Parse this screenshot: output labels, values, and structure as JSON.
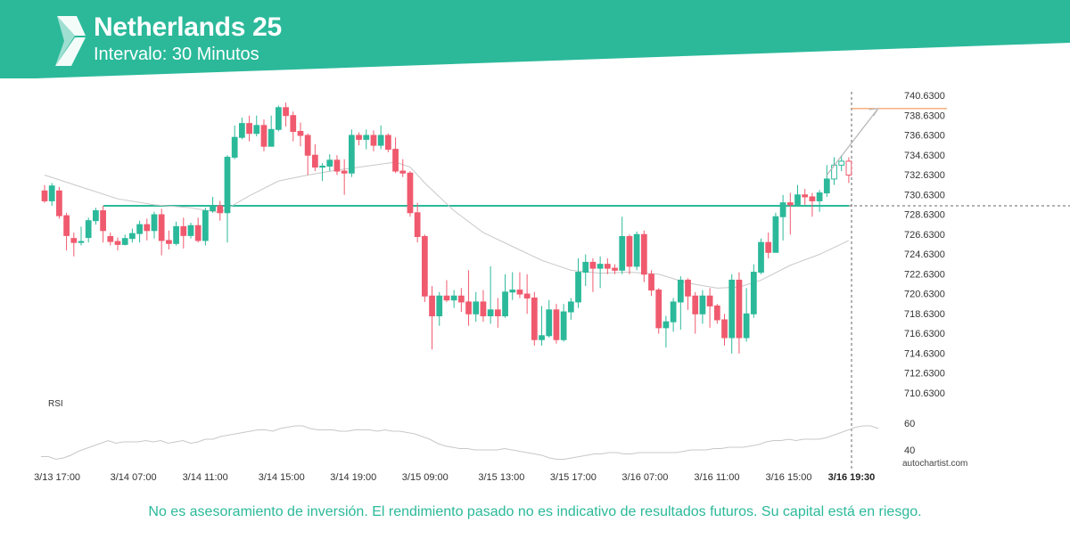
{
  "header": {
    "title": "Netherlands 25",
    "subtitle": "Intervalo: 30 Minutos",
    "brand_color": "#2bb99a"
  },
  "disclaimer": "No es asesoramiento de inversión. El rendimiento pasado no es indicativo de resultados futuros. Su capital está en riesgo.",
  "watermark": "autochartist.com",
  "chart_data": [
    {
      "type": "candlestick",
      "title": "Netherlands 25",
      "ylim": [
        710.0,
        741.0
      ],
      "y_ticks": [
        "740.6300",
        "738.6300",
        "736.6300",
        "734.6300",
        "732.6300",
        "730.6300",
        "728.6300",
        "726.6300",
        "724.6300",
        "722.6300",
        "720.6300",
        "718.6300",
        "716.6300",
        "714.6300",
        "712.6300",
        "710.6300"
      ],
      "x_ticks": [
        "3/13 17:00",
        "3/14 07:00",
        "3/14 11:00",
        "3/14 15:00",
        "3/14 19:00",
        "3/15 09:00",
        "3/15 13:00",
        "3/15 17:00",
        "3/16 07:00",
        "3/16 11:00",
        "3/16 15:00",
        "3/16 19:30"
      ],
      "highlight_x_tick": "3/16 19:30",
      "support_level": 729.5,
      "target_level": 739.3,
      "colors": {
        "up": "#2bb99a",
        "down": "#f05a6e",
        "ma": "#c8c8c8",
        "support": "#2bb99a",
        "target": "#f0883c",
        "arrow": "#b5b5b5"
      },
      "candles": [
        [
          731.0,
          730.0,
          731.6,
          729.8
        ],
        [
          730.0,
          731.5,
          731.8,
          729.5
        ],
        [
          731.0,
          728.5,
          731.4,
          728.2
        ],
        [
          728.5,
          726.5,
          728.8,
          725.0
        ],
        [
          726.2,
          725.8,
          726.8,
          724.4
        ],
        [
          725.8,
          725.9,
          727.4,
          725.5
        ],
        [
          726.3,
          728.0,
          728.3,
          725.8
        ],
        [
          728.0,
          729.0,
          729.3,
          727.6
        ],
        [
          729.0,
          727.0,
          729.5,
          725.8
        ],
        [
          726.4,
          725.9,
          726.8,
          725.5
        ],
        [
          725.9,
          725.6,
          726.3,
          725.0
        ],
        [
          725.6,
          726.2,
          726.6,
          725.5
        ],
        [
          726.2,
          726.7,
          727.2,
          725.8
        ],
        [
          726.7,
          727.6,
          728.0,
          725.8
        ],
        [
          727.6,
          727.0,
          728.2,
          726.0
        ],
        [
          727.0,
          728.6,
          728.9,
          726.2
        ],
        [
          728.6,
          726.0,
          729.2,
          724.5
        ],
        [
          726.0,
          725.7,
          727.0,
          725.1
        ],
        [
          725.7,
          727.4,
          727.9,
          725.5
        ],
        [
          727.4,
          726.5,
          728.3,
          725.2
        ],
        [
          726.5,
          727.5,
          727.8,
          726.2
        ],
        [
          727.5,
          726.0,
          728.3,
          725.8
        ],
        [
          726.0,
          729.0,
          729.3,
          725.5
        ],
        [
          729.0,
          729.5,
          730.4,
          728.8
        ],
        [
          729.5,
          728.8,
          730.0,
          728.0
        ],
        [
          728.8,
          734.4,
          734.6,
          725.8
        ],
        [
          734.4,
          736.4,
          737.6,
          734.2
        ],
        [
          736.4,
          737.8,
          738.4,
          736.2
        ],
        [
          737.8,
          736.8,
          738.6,
          736.0
        ],
        [
          736.8,
          737.6,
          738.6,
          736.5
        ],
        [
          737.6,
          735.5,
          738.2,
          735.0
        ],
        [
          735.5,
          737.2,
          738.6,
          736.8
        ],
        [
          737.2,
          739.4,
          739.6,
          737.0
        ],
        [
          739.4,
          738.6,
          739.9,
          737.5
        ],
        [
          738.6,
          737.0,
          739.0,
          736.0
        ],
        [
          737.0,
          736.6,
          737.9,
          735.5
        ],
        [
          736.6,
          734.6,
          736.8,
          732.6
        ],
        [
          734.6,
          733.4,
          735.7,
          733.0
        ],
        [
          733.4,
          733.5,
          733.8,
          732.0
        ],
        [
          733.5,
          734.1,
          734.7,
          733.0
        ],
        [
          734.1,
          733.0,
          734.6,
          732.6
        ],
        [
          733.0,
          732.8,
          734.2,
          730.6
        ],
        [
          732.8,
          736.6,
          737.2,
          732.4
        ],
        [
          736.6,
          736.2,
          736.9,
          735.6
        ],
        [
          736.2,
          736.6,
          737.2,
          735.2
        ],
        [
          736.6,
          735.6,
          737.1,
          735.0
        ],
        [
          735.6,
          736.6,
          737.6,
          735.2
        ],
        [
          736.6,
          735.2,
          736.8,
          734.9
        ],
        [
          735.2,
          733.0,
          736.4,
          732.8
        ],
        [
          733.0,
          732.8,
          734.2,
          732.4
        ],
        [
          732.8,
          728.8,
          733.0,
          728.4
        ],
        [
          728.8,
          726.4,
          729.8,
          725.8
        ],
        [
          726.4,
          720.4,
          726.6,
          719.8
        ],
        [
          720.4,
          718.4,
          721.4,
          715.0
        ],
        [
          718.4,
          720.4,
          720.8,
          717.4
        ],
        [
          720.4,
          720.0,
          722.0,
          719.8
        ],
        [
          720.0,
          720.4,
          721.0,
          719.2
        ],
        [
          720.4,
          719.8,
          721.2,
          718.8
        ],
        [
          719.8,
          718.6,
          723.0,
          717.4
        ],
        [
          718.6,
          719.8,
          720.8,
          717.8
        ],
        [
          719.8,
          718.4,
          721.0,
          717.8
        ],
        [
          718.4,
          719.0,
          723.4,
          717.6
        ],
        [
          719.0,
          718.4,
          720.2,
          717.2
        ],
        [
          718.4,
          720.8,
          722.6,
          718.2
        ],
        [
          720.8,
          721.0,
          722.8,
          720.0
        ],
        [
          721.0,
          720.6,
          722.8,
          720.2
        ],
        [
          720.6,
          720.2,
          722.6,
          718.6
        ],
        [
          720.2,
          716.0,
          720.8,
          715.4
        ],
        [
          716.0,
          716.4,
          719.4,
          715.4
        ],
        [
          716.4,
          719.0,
          720.0,
          716.2
        ],
        [
          719.0,
          716.0,
          719.6,
          715.6
        ],
        [
          716.0,
          718.8,
          719.6,
          715.8
        ],
        [
          718.8,
          719.8,
          720.2,
          718.0
        ],
        [
          719.8,
          722.8,
          724.2,
          719.2
        ],
        [
          722.8,
          723.8,
          724.6,
          721.4
        ],
        [
          723.8,
          723.2,
          724.2,
          720.8
        ],
        [
          723.2,
          723.6,
          724.4,
          721.2
        ],
        [
          723.6,
          723.2,
          724.2,
          722.6
        ],
        [
          723.2,
          723.0,
          723.6,
          722.6
        ],
        [
          723.0,
          726.4,
          728.4,
          722.6
        ],
        [
          726.4,
          723.4,
          726.6,
          722.6
        ],
        [
          723.4,
          726.6,
          726.9,
          723.0
        ],
        [
          726.6,
          722.6,
          727.0,
          721.8
        ],
        [
          722.6,
          721.0,
          723.0,
          720.4
        ],
        [
          721.0,
          717.2,
          721.2,
          716.6
        ],
        [
          717.2,
          717.8,
          718.4,
          715.2
        ],
        [
          717.8,
          719.8,
          720.2,
          716.8
        ],
        [
          719.8,
          722.0,
          722.4,
          717.0
        ],
        [
          722.0,
          720.4,
          722.2,
          719.0
        ],
        [
          720.4,
          718.6,
          720.8,
          716.6
        ],
        [
          718.6,
          720.4,
          721.0,
          717.6
        ],
        [
          720.4,
          719.4,
          721.2,
          717.2
        ],
        [
          719.4,
          718.0,
          719.6,
          717.6
        ],
        [
          718.0,
          716.2,
          718.6,
          715.4
        ],
        [
          716.2,
          722.0,
          722.6,
          714.6
        ],
        [
          722.0,
          716.2,
          722.8,
          714.6
        ],
        [
          716.2,
          718.6,
          721.2,
          715.8
        ],
        [
          718.6,
          722.8,
          723.6,
          718.2
        ],
        [
          722.8,
          725.8,
          726.2,
          722.6
        ],
        [
          725.8,
          724.8,
          726.8,
          724.2
        ],
        [
          724.8,
          728.4,
          728.8,
          724.8
        ],
        [
          728.4,
          729.8,
          730.6,
          726.0
        ],
        [
          729.8,
          729.6,
          730.8,
          726.6
        ],
        [
          729.6,
          730.6,
          731.6,
          729.4
        ],
        [
          730.6,
          730.4,
          731.2,
          729.6
        ],
        [
          730.4,
          730.0,
          730.8,
          728.4
        ],
        [
          730.0,
          730.8,
          731.1,
          728.9
        ],
        [
          730.8,
          732.2,
          733.6,
          730.4
        ],
        [
          732.2,
          733.6,
          734.4,
          731.6
        ],
        [
          733.6,
          734.0,
          734.6,
          733.0
        ],
        [
          734.0,
          732.6,
          734.4,
          731.8
        ]
      ],
      "hollow_last": 3,
      "ma": [
        [
          0,
          732.6
        ],
        [
          5,
          731.4
        ],
        [
          10,
          730.2
        ],
        [
          15,
          729.6
        ],
        [
          20,
          729.3
        ],
        [
          24,
          728.8
        ],
        [
          28,
          730.5
        ],
        [
          32,
          732.0
        ],
        [
          36,
          732.6
        ],
        [
          40,
          733.1
        ],
        [
          44,
          733.5
        ],
        [
          48,
          733.9
        ],
        [
          50,
          733.4
        ],
        [
          52,
          731.8
        ],
        [
          56,
          729.0
        ],
        [
          60,
          726.8
        ],
        [
          64,
          725.4
        ],
        [
          68,
          724.0
        ],
        [
          72,
          723.0
        ],
        [
          76,
          722.7
        ],
        [
          80,
          722.8
        ],
        [
          84,
          722.6
        ],
        [
          88,
          721.7
        ],
        [
          92,
          721.2
        ],
        [
          95,
          721.3
        ],
        [
          98,
          722.0
        ],
        [
          102,
          723.5
        ],
        [
          106,
          724.6
        ],
        [
          110,
          726.0
        ]
      ],
      "arrow_to": [
        114,
        739.3
      ],
      "rsi": {
        "label": "RSI",
        "ylim": [
          30,
          70
        ],
        "ticks": [
          "60",
          "40"
        ],
        "values": [
          35,
          35,
          33,
          34,
          36,
          39,
          41,
          43,
          45,
          47,
          45,
          46,
          46,
          46,
          47,
          46,
          47,
          45,
          46,
          47,
          45,
          46,
          48,
          48,
          50,
          51,
          52,
          53,
          54,
          55,
          55,
          54,
          56,
          57,
          58,
          58,
          56,
          55,
          55,
          55,
          54,
          54,
          55,
          55,
          55,
          54,
          55,
          54,
          54,
          53,
          52,
          50,
          48,
          45,
          43,
          42,
          41,
          41,
          40,
          40,
          40,
          40,
          41,
          40,
          39,
          38,
          37,
          36,
          34,
          33,
          33,
          34,
          35,
          36,
          37,
          37,
          38,
          38,
          37,
          37,
          38,
          38,
          38,
          38,
          38,
          38,
          39,
          40,
          40,
          40,
          41,
          41,
          42,
          42,
          42,
          43,
          44,
          46,
          47,
          47,
          48,
          47,
          48,
          48,
          48,
          49,
          51,
          53,
          55,
          57,
          58,
          58,
          56
        ]
      }
    }
  ]
}
